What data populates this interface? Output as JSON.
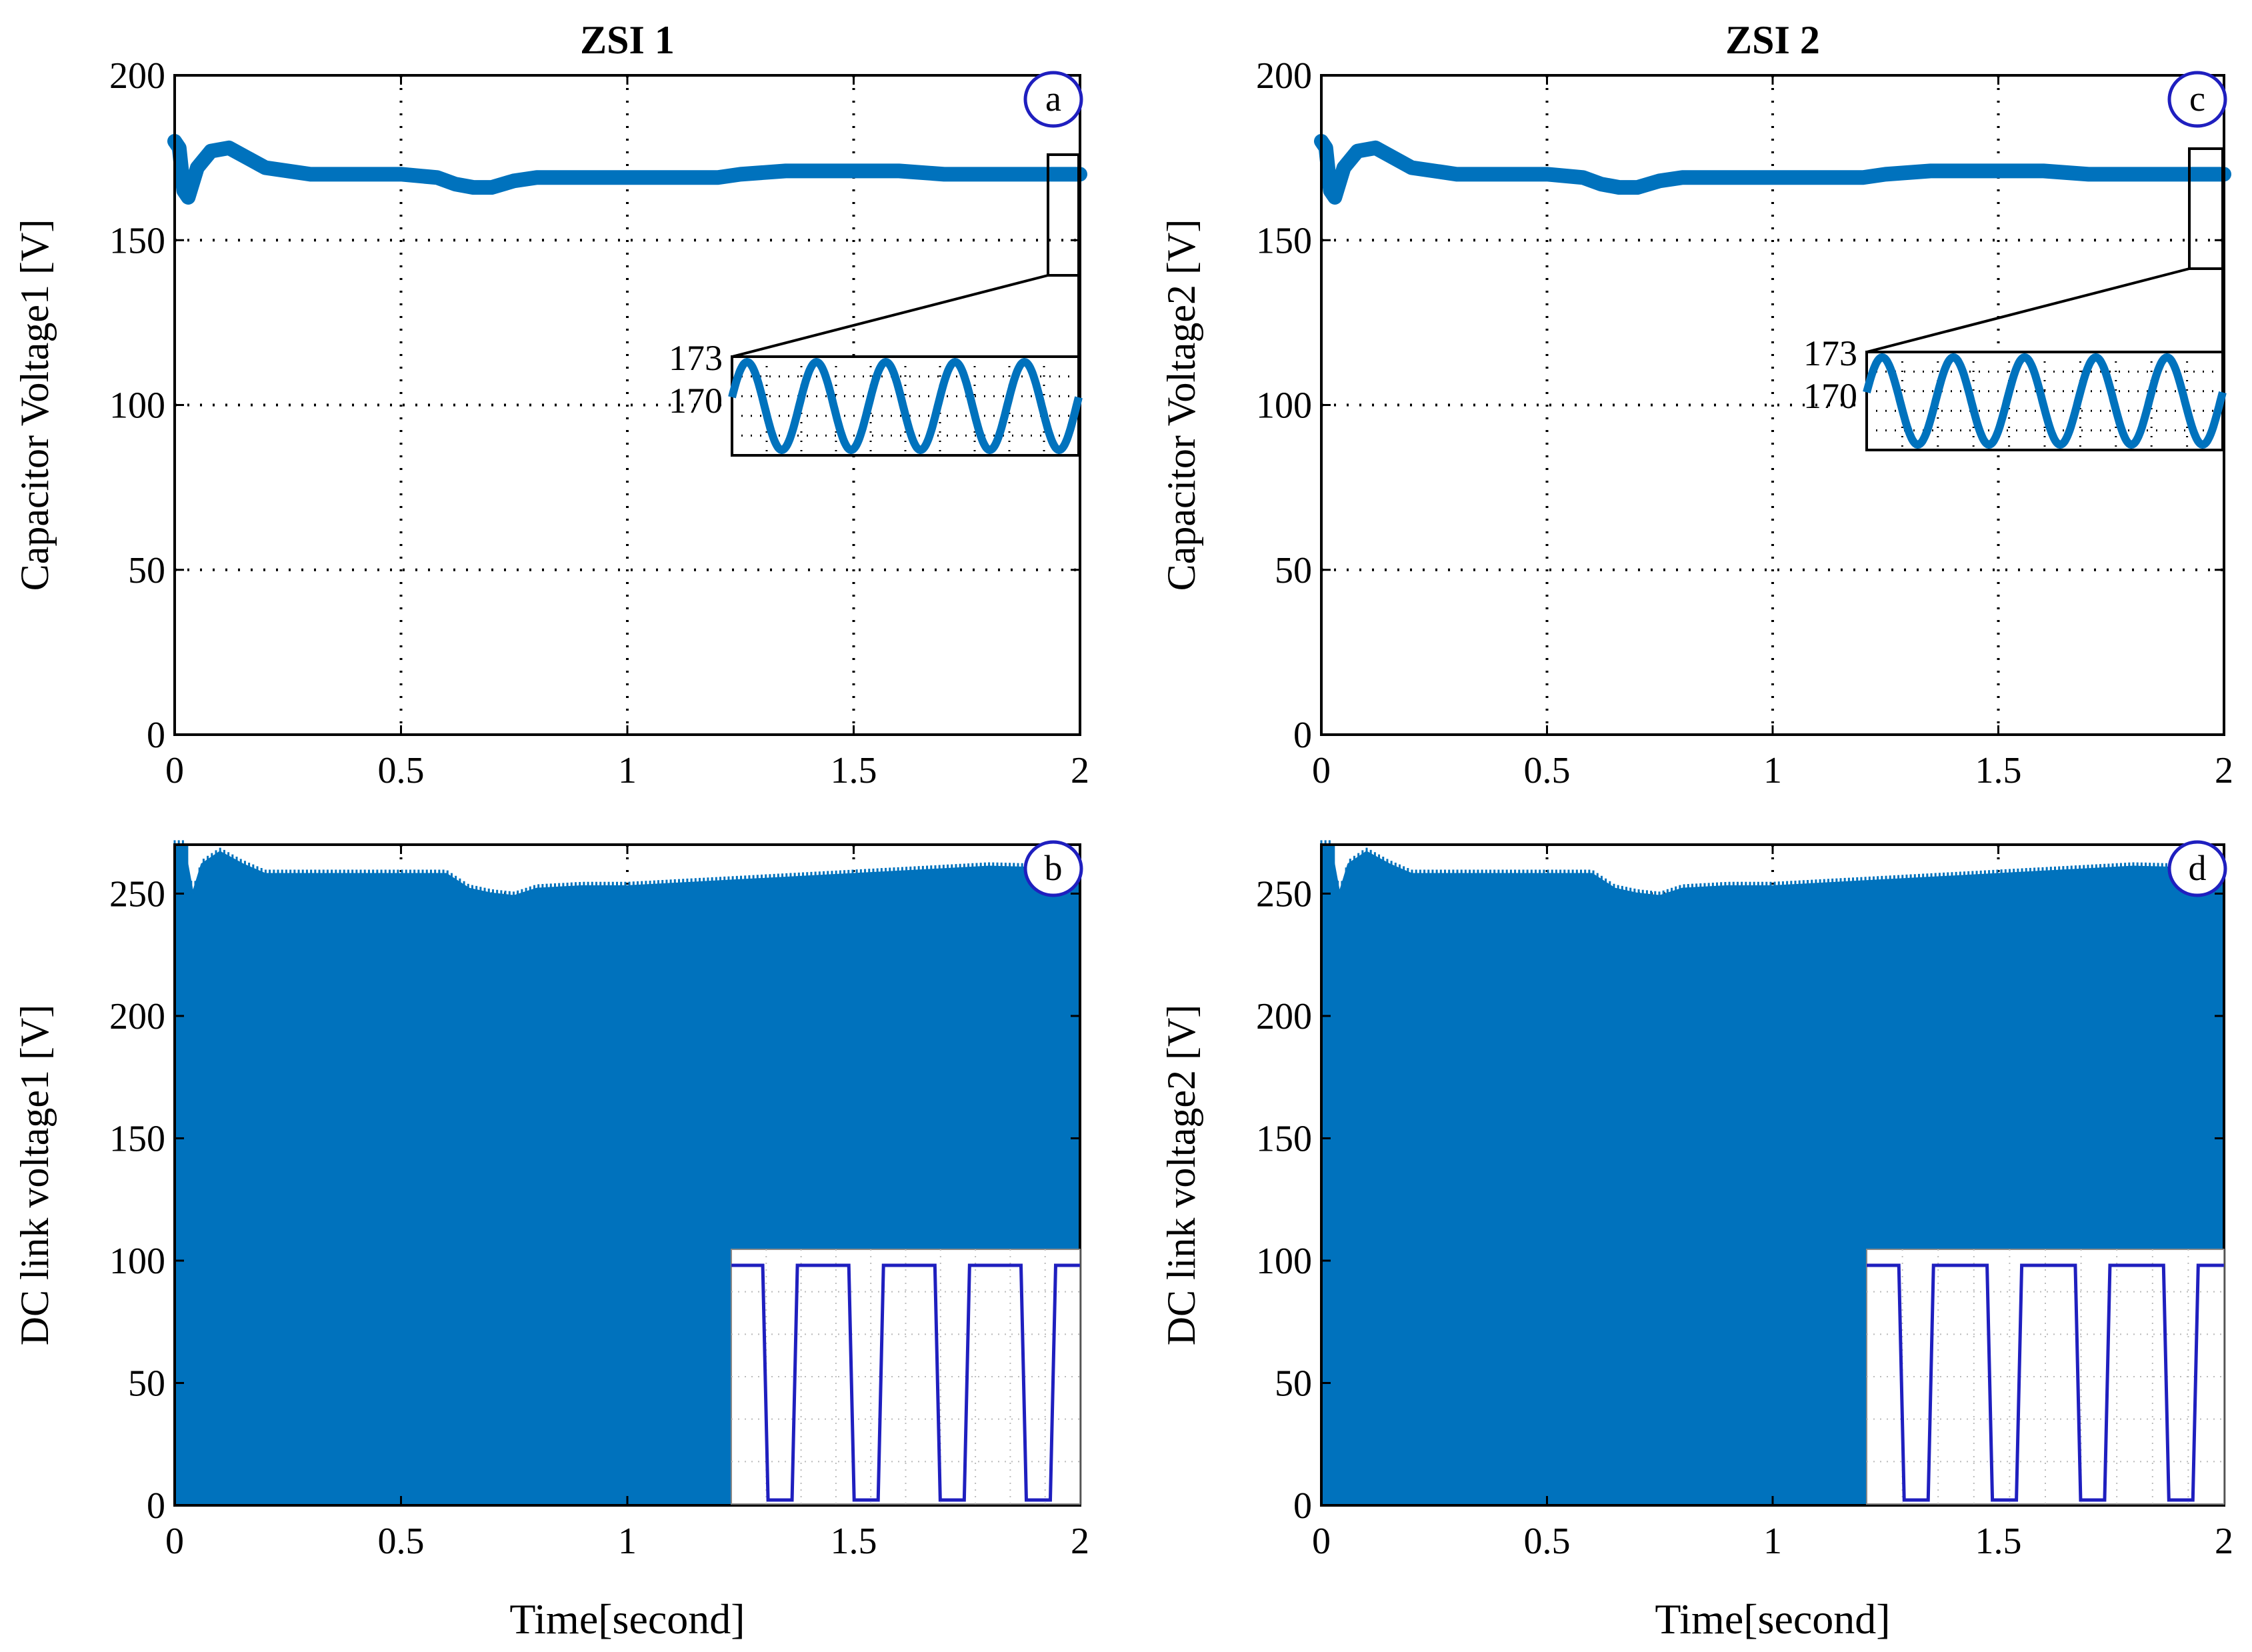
{
  "chart_data": [
    {
      "id": "a",
      "type": "line",
      "title": "ZSI 1",
      "ylabel": "Capacitor Voltage1 [V]",
      "xlabel": "",
      "xlim": [
        0,
        2
      ],
      "ylim": [
        0,
        200
      ],
      "xticks": [
        0,
        0.5,
        1,
        1.5,
        2
      ],
      "xtick_labels": [
        "0",
        "0.5",
        "1",
        "1.5",
        "2"
      ],
      "yticks": [
        0,
        50,
        100,
        150,
        200
      ],
      "ytick_labels": [
        "0",
        "50",
        "100",
        "150",
        "200"
      ],
      "grid": true,
      "badge": "a",
      "color": "#0072BD",
      "series": [
        {
          "name": "Capacitor Voltage1",
          "x": [
            0,
            0.01,
            0.02,
            0.03,
            0.05,
            0.08,
            0.12,
            0.16,
            0.2,
            0.3,
            0.4,
            0.5,
            0.58,
            0.62,
            0.66,
            0.7,
            0.75,
            0.8,
            0.9,
            1.0,
            1.1,
            1.2,
            1.25,
            1.35,
            1.5,
            1.6,
            1.7,
            1.8,
            1.9,
            2.0
          ],
          "y": [
            180,
            178,
            165,
            163,
            172,
            177,
            178,
            175,
            172,
            170,
            170,
            170,
            169,
            167,
            166,
            166,
            168,
            169,
            169,
            169,
            169,
            169,
            170,
            171,
            171,
            171,
            170,
            170,
            170,
            170
          ]
        }
      ],
      "inset": {
        "ytick_labels": [
          "173",
          "170"
        ],
        "cycles": 5,
        "zoom_from": [
          1.95,
          2.0
        ],
        "zoom_yrange": [
          140,
          175
        ]
      }
    },
    {
      "id": "b",
      "type": "area",
      "title": "",
      "ylabel": "DC link voltage1 [V]",
      "xlabel": "Time[second]",
      "xlim": [
        0,
        2
      ],
      "ylim": [
        0,
        270
      ],
      "xticks": [
        0,
        0.5,
        1,
        1.5,
        2
      ],
      "xtick_labels": [
        "0",
        "0.5",
        "1",
        "1.5",
        "2"
      ],
      "yticks": [
        0,
        50,
        100,
        150,
        200,
        250
      ],
      "ytick_labels": [
        "0",
        "50",
        "100",
        "150",
        "200",
        "250"
      ],
      "grid": true,
      "badge": "b",
      "color": "#0072BD",
      "series": [
        {
          "name": "DC link voltage1 (upper envelope)",
          "x": [
            0,
            0.02,
            0.04,
            0.06,
            0.1,
            0.15,
            0.2,
            0.3,
            0.5,
            0.6,
            0.65,
            0.7,
            0.75,
            0.8,
            0.9,
            1.0,
            1.2,
            1.5,
            1.7,
            1.8,
            2.0
          ],
          "y": [
            270,
            270,
            250,
            262,
            267,
            262,
            258,
            258,
            258,
            258,
            252,
            250,
            249,
            252,
            253,
            253,
            255,
            258,
            260,
            261,
            260
          ]
        }
      ],
      "inset": {
        "type": "square-wave",
        "pulses": 4,
        "color": "#1f1fbf"
      }
    },
    {
      "id": "c",
      "type": "line",
      "title": "ZSI 2",
      "ylabel": "Capacitor Voltage2 [V]",
      "xlabel": "",
      "xlim": [
        0,
        2
      ],
      "ylim": [
        0,
        200
      ],
      "xticks": [
        0,
        0.5,
        1,
        1.5,
        2
      ],
      "xtick_labels": [
        "0",
        "0.5",
        "1",
        "1.5",
        "2"
      ],
      "yticks": [
        0,
        50,
        100,
        150,
        200
      ],
      "ytick_labels": [
        "0",
        "50",
        "100",
        "150",
        "200"
      ],
      "grid": true,
      "badge": "c",
      "color": "#0072BD",
      "series": [
        {
          "name": "Capacitor Voltage2",
          "x": [
            0,
            0.01,
            0.02,
            0.03,
            0.05,
            0.08,
            0.12,
            0.16,
            0.2,
            0.3,
            0.4,
            0.5,
            0.58,
            0.62,
            0.66,
            0.7,
            0.75,
            0.8,
            0.9,
            1.0,
            1.1,
            1.2,
            1.25,
            1.35,
            1.5,
            1.6,
            1.7,
            1.8,
            1.9,
            2.0
          ],
          "y": [
            180,
            178,
            165,
            163,
            172,
            177,
            178,
            175,
            172,
            170,
            170,
            170,
            169,
            167,
            166,
            166,
            168,
            169,
            169,
            169,
            169,
            169,
            170,
            171,
            171,
            171,
            170,
            170,
            170,
            170
          ]
        }
      ],
      "inset": {
        "ytick_labels": [
          "173",
          "170"
        ],
        "cycles": 5,
        "zoom_from": [
          1.94,
          2.0
        ],
        "zoom_yrange": [
          142,
          178
        ]
      }
    },
    {
      "id": "d",
      "type": "area",
      "title": "",
      "ylabel": "DC link voltage2 [V]",
      "xlabel": "Time[second]",
      "xlim": [
        0,
        2
      ],
      "ylim": [
        0,
        270
      ],
      "xticks": [
        0,
        0.5,
        1,
        1.5,
        2
      ],
      "xtick_labels": [
        "0",
        "0.5",
        "1",
        "1.5",
        "2"
      ],
      "yticks": [
        0,
        50,
        100,
        150,
        200,
        250
      ],
      "ytick_labels": [
        "0",
        "50",
        "100",
        "150",
        "200",
        "250"
      ],
      "grid": true,
      "badge": "d",
      "color": "#0072BD",
      "series": [
        {
          "name": "DC link voltage2 (upper envelope)",
          "x": [
            0,
            0.02,
            0.04,
            0.06,
            0.1,
            0.15,
            0.2,
            0.3,
            0.5,
            0.6,
            0.65,
            0.7,
            0.75,
            0.8,
            0.9,
            1.0,
            1.2,
            1.5,
            1.7,
            1.8,
            2.0
          ],
          "y": [
            270,
            270,
            250,
            262,
            267,
            262,
            258,
            258,
            258,
            258,
            252,
            250,
            249,
            252,
            253,
            253,
            255,
            258,
            260,
            261,
            260
          ]
        }
      ],
      "inset": {
        "type": "square-wave",
        "pulses": 4,
        "color": "#1f1fbf"
      }
    }
  ]
}
